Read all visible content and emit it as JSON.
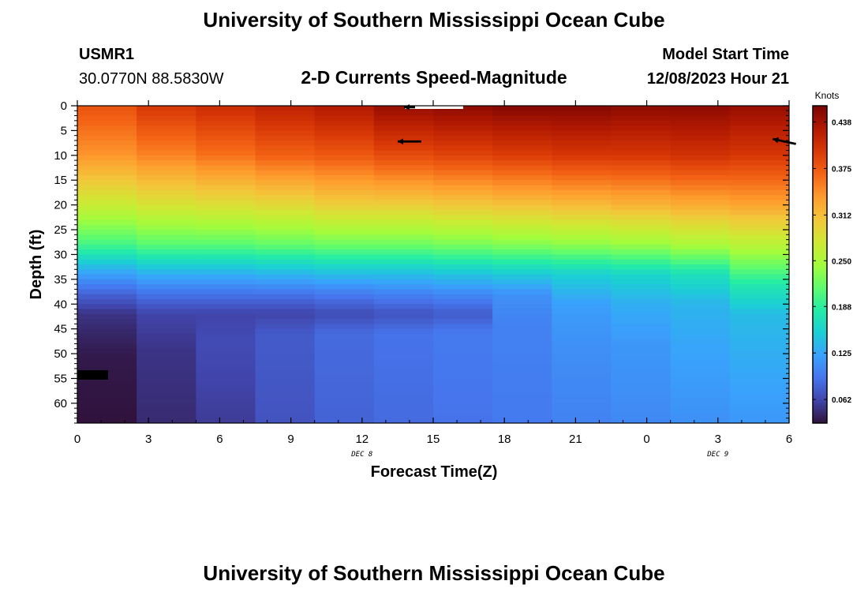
{
  "page": {
    "title": "University of Southern Mississippi Ocean Cube",
    "station_id": "USMR1",
    "coordinates": "30.0770N  88.5830W",
    "subtitle": "2-D Currents Speed-Magnitude",
    "model_start_label": "Model Start Time",
    "model_start_value": "12/08/2023 Hour 21",
    "footer_title": "University of Southern Mississippi Ocean Cube"
  },
  "chart_data": {
    "type": "heatmap",
    "title": "2-D Currents Speed-Magnitude",
    "xlabel": "Forecast Time(Z)",
    "ylabel": "Depth (ft)",
    "x_ticks": [
      "0",
      "3",
      "6",
      "9",
      "12",
      "15",
      "18",
      "21",
      "0",
      "3",
      "6"
    ],
    "x_range_hours": [
      0,
      30
    ],
    "date_labels": [
      {
        "text": "DEC 8",
        "hour": 12
      },
      {
        "text": "DEC 9",
        "hour": 27
      }
    ],
    "y_ticks": [
      0,
      5,
      10,
      15,
      20,
      25,
      30,
      35,
      40,
      45,
      50,
      55,
      60
    ],
    "y_range_ft": [
      0,
      64
    ],
    "y_inverted": true,
    "colorbar": {
      "units": "Knots",
      "range": [
        0.03,
        0.46
      ],
      "ticks": [
        "0.438",
        "0.375",
        "0.312",
        "0.250",
        "0.188",
        "0.125",
        "0.062"
      ],
      "colors": [
        "#30123b",
        "#4145ab",
        "#4675ed",
        "#39a2fc",
        "#1bcfd4",
        "#24eca6",
        "#61fc6c",
        "#a4fc3b",
        "#d1e834",
        "#f3c63a",
        "#fe9b2d",
        "#f36315",
        "#d93806",
        "#b11901",
        "#7a0402"
      ]
    },
    "time_columns_hours": [
      0,
      2.5,
      5,
      7.5,
      10,
      12.5,
      15,
      17.5,
      20,
      22.5,
      25,
      27.5
    ],
    "speed_profiles_knots": [
      [
        [
          0,
          0.38
        ],
        [
          10,
          0.34
        ],
        [
          20,
          0.27
        ],
        [
          28,
          0.2
        ],
        [
          34,
          0.12
        ],
        [
          38,
          0.08
        ],
        [
          42,
          0.05
        ],
        [
          50,
          0.035
        ],
        [
          64,
          0.03
        ]
      ],
      [
        [
          0,
          0.4
        ],
        [
          10,
          0.35
        ],
        [
          20,
          0.28
        ],
        [
          28,
          0.21
        ],
        [
          34,
          0.13
        ],
        [
          38,
          0.09
        ],
        [
          42,
          0.06
        ],
        [
          50,
          0.05
        ],
        [
          64,
          0.045
        ]
      ],
      [
        [
          0,
          0.41
        ],
        [
          10,
          0.36
        ],
        [
          20,
          0.285
        ],
        [
          28,
          0.21
        ],
        [
          34,
          0.13
        ],
        [
          38,
          0.09
        ],
        [
          42,
          0.06
        ],
        [
          48,
          0.065
        ],
        [
          64,
          0.055
        ]
      ],
      [
        [
          0,
          0.42
        ],
        [
          10,
          0.37
        ],
        [
          20,
          0.29
        ],
        [
          28,
          0.215
        ],
        [
          34,
          0.135
        ],
        [
          38,
          0.09
        ],
        [
          42,
          0.06
        ],
        [
          46,
          0.075
        ],
        [
          64,
          0.07
        ]
      ],
      [
        [
          0,
          0.43
        ],
        [
          10,
          0.375
        ],
        [
          20,
          0.3
        ],
        [
          28,
          0.22
        ],
        [
          34,
          0.14
        ],
        [
          38,
          0.095
        ],
        [
          42,
          0.065
        ],
        [
          46,
          0.085
        ],
        [
          64,
          0.08
        ]
      ],
      [
        [
          0,
          0.445
        ],
        [
          10,
          0.385
        ],
        [
          20,
          0.3
        ],
        [
          28,
          0.22
        ],
        [
          34,
          0.14
        ],
        [
          38,
          0.1
        ],
        [
          42,
          0.07
        ],
        [
          46,
          0.09
        ],
        [
          64,
          0.085
        ]
      ],
      [
        [
          0,
          0.45
        ],
        [
          10,
          0.39
        ],
        [
          20,
          0.305
        ],
        [
          28,
          0.225
        ],
        [
          34,
          0.145
        ],
        [
          38,
          0.105
        ],
        [
          42,
          0.075
        ],
        [
          46,
          0.095
        ],
        [
          64,
          0.09
        ]
      ],
      [
        [
          0,
          0.455
        ],
        [
          10,
          0.395
        ],
        [
          20,
          0.31
        ],
        [
          28,
          0.23
        ],
        [
          34,
          0.15
        ],
        [
          38,
          0.11
        ],
        [
          44,
          0.1
        ],
        [
          64,
          0.095
        ]
      ],
      [
        [
          0,
          0.455
        ],
        [
          10,
          0.4
        ],
        [
          20,
          0.315
        ],
        [
          28,
          0.235
        ],
        [
          34,
          0.155
        ],
        [
          40,
          0.12
        ],
        [
          48,
          0.11
        ],
        [
          64,
          0.1
        ]
      ],
      [
        [
          0,
          0.45
        ],
        [
          10,
          0.4
        ],
        [
          20,
          0.32
        ],
        [
          28,
          0.24
        ],
        [
          34,
          0.16
        ],
        [
          40,
          0.13
        ],
        [
          48,
          0.115
        ],
        [
          64,
          0.105
        ]
      ],
      [
        [
          0,
          0.45
        ],
        [
          10,
          0.405
        ],
        [
          20,
          0.325
        ],
        [
          28,
          0.25
        ],
        [
          34,
          0.17
        ],
        [
          40,
          0.135
        ],
        [
          48,
          0.125
        ],
        [
          64,
          0.11
        ]
      ],
      [
        [
          0,
          0.445
        ],
        [
          10,
          0.4
        ],
        [
          20,
          0.33
        ],
        [
          28,
          0.26
        ],
        [
          36,
          0.18
        ],
        [
          42,
          0.14
        ],
        [
          50,
          0.13
        ],
        [
          64,
          0.115
        ]
      ]
    ],
    "direction_arrows": [
      {
        "hour": 14,
        "depth_ft": 7.2,
        "direction": "W",
        "length": "long"
      },
      {
        "hour": 29.8,
        "depth_ft": 7.2,
        "direction": "WNW",
        "length": "long"
      },
      {
        "hour": 14,
        "depth_ft": 0.3,
        "direction": "W",
        "length": "short"
      }
    ]
  }
}
